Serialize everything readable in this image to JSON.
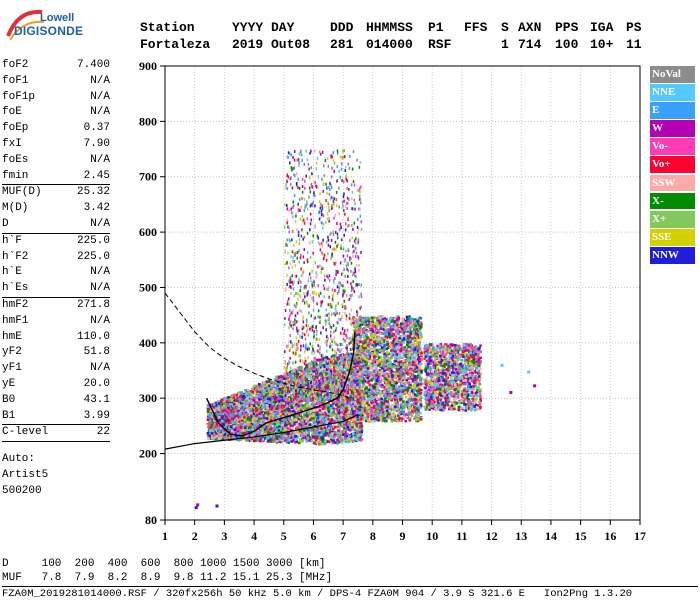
{
  "brand": {
    "line1": "Lowell",
    "line2": "DIGISONDE"
  },
  "header": {
    "row1": [
      "Station",
      "YYYY DAY",
      "DDD",
      "HHMMSS",
      "P1",
      "FFS",
      "S",
      "AXN",
      "PPS",
      "IGA",
      "PS"
    ],
    "row2": [
      "Fortaleza",
      "2019 Out08",
      "281",
      "014000",
      "RSF",
      "1",
      "714",
      "100",
      "10+",
      "11"
    ]
  },
  "params": {
    "group1": [
      {
        "name": "foF2",
        "value": "7.400"
      },
      {
        "name": "foF1",
        "value": "N/A"
      },
      {
        "name": "foF1p",
        "value": "N/A"
      },
      {
        "name": "foE",
        "value": "N/A"
      },
      {
        "name": "foEp",
        "value": "0.37"
      },
      {
        "name": "fxI",
        "value": "7.90"
      },
      {
        "name": "foEs",
        "value": "N/A"
      },
      {
        "name": "fmin",
        "value": "2.45"
      }
    ],
    "group2": [
      {
        "name": "MUF(D)",
        "value": "25.32"
      },
      {
        "name": "M(D)",
        "value": "3.42"
      },
      {
        "name": "D",
        "value": "N/A"
      }
    ],
    "group3": [
      {
        "name": "h`F",
        "value": "225.0"
      },
      {
        "name": "h`F2",
        "value": "225.0"
      },
      {
        "name": "h`E",
        "value": "N/A"
      },
      {
        "name": "h`Es",
        "value": "N/A"
      }
    ],
    "group4": [
      {
        "name": "hmF2",
        "value": "271.8"
      },
      {
        "name": "hmF1",
        "value": "N/A"
      },
      {
        "name": "hmE",
        "value": "110.0"
      },
      {
        "name": "yF2",
        "value": "51.8"
      },
      {
        "name": "yF1",
        "value": "N/A"
      },
      {
        "name": "yE",
        "value": "20.0"
      },
      {
        "name": "B0",
        "value": "43.1"
      },
      {
        "name": "B1",
        "value": "3.99"
      }
    ],
    "group5": [
      {
        "name": "C-level",
        "value": "22"
      }
    ],
    "auto": [
      "Auto:",
      "Artist5",
      "500200"
    ]
  },
  "legend": [
    {
      "label": "NoVal",
      "color": "#8c8c8c"
    },
    {
      "label": "NNE",
      "color": "#55c8ff"
    },
    {
      "label": "E",
      "color": "#3aa0ff"
    },
    {
      "label": "W",
      "color": "#b400b4"
    },
    {
      "label": "Vo-",
      "color": "#ff3cb4"
    },
    {
      "label": "Vo+",
      "color": "#ff0032"
    },
    {
      "label": "SSW",
      "color": "#ffaaaa"
    },
    {
      "label": "X-",
      "color": "#008c00"
    },
    {
      "label": "X+",
      "color": "#82c85a"
    },
    {
      "label": "SSE",
      "color": "#d2d200"
    },
    {
      "label": "NNW",
      "color": "#1e1edc"
    }
  ],
  "muf_table": {
    "d_row": "D     100  200  400  600  800 1000 1500 3000 [km]",
    "muf_row": "MUF   7.8  7.9  8.2  8.9  9.8 11.2 15.1 25.3 [MHz]"
  },
  "footer": "FZA0M_2019281014000.RSF / 320fx256h 50 kHz 5.0 km / DPS-4 FZA0M 904 / 3.9 S 321.6 E   Ion2Png 1.3.20",
  "chart_data": {
    "type": "scatter",
    "xlim": [
      1,
      17
    ],
    "ylim": [
      80,
      900
    ],
    "xticks": [
      1,
      2,
      3,
      4,
      5,
      6,
      7,
      8,
      9,
      10,
      11,
      12,
      13,
      14,
      15,
      16,
      17
    ],
    "yticks": [
      80,
      200,
      300,
      400,
      500,
      600,
      700,
      800,
      900
    ],
    "grid": true,
    "curves": {
      "dashed_upper": {
        "x": [
          1.0,
          1.5,
          2.0,
          2.5,
          3.0,
          3.5,
          4.0,
          4.5,
          5.0,
          5.5,
          6.0,
          6.5,
          7.0,
          7.2
        ],
        "y": [
          490,
          455,
          420,
          392,
          372,
          357,
          345,
          335,
          327,
          320,
          315,
          311,
          305,
          300
        ]
      },
      "dashed_lower": {
        "x": [
          1.0,
          2.0,
          3.0,
          4.0,
          5.0,
          6.0,
          7.0,
          7.5
        ],
        "y": [
          208,
          218,
          224,
          230,
          238,
          248,
          258,
          270
        ]
      },
      "profile_trace": {
        "x": [
          2.4,
          2.8,
          3.2,
          3.6,
          4.0,
          4.4,
          4.8,
          5.2,
          5.6,
          6.0,
          6.4,
          6.8,
          7.0,
          7.2,
          7.35,
          7.4
        ],
        "y": [
          300,
          255,
          235,
          232,
          240,
          255,
          262,
          268,
          275,
          282,
          290,
          300,
          315,
          345,
          380,
          420
        ]
      }
    },
    "outlier_points": [
      {
        "x": 2.0,
        "y": 105,
        "color": "#1e1edc"
      },
      {
        "x": 2.05,
        "y": 110,
        "color": "#b400b4"
      },
      {
        "x": 2.7,
        "y": 108,
        "color": "#1e1edc"
      },
      {
        "x": 12.3,
        "y": 362,
        "color": "#55c8ff"
      },
      {
        "x": 12.6,
        "y": 313,
        "color": "#b400b4"
      },
      {
        "x": 13.2,
        "y": 350,
        "color": "#55c8ff"
      },
      {
        "x": 13.4,
        "y": 325,
        "color": "#b400b4"
      }
    ]
  }
}
